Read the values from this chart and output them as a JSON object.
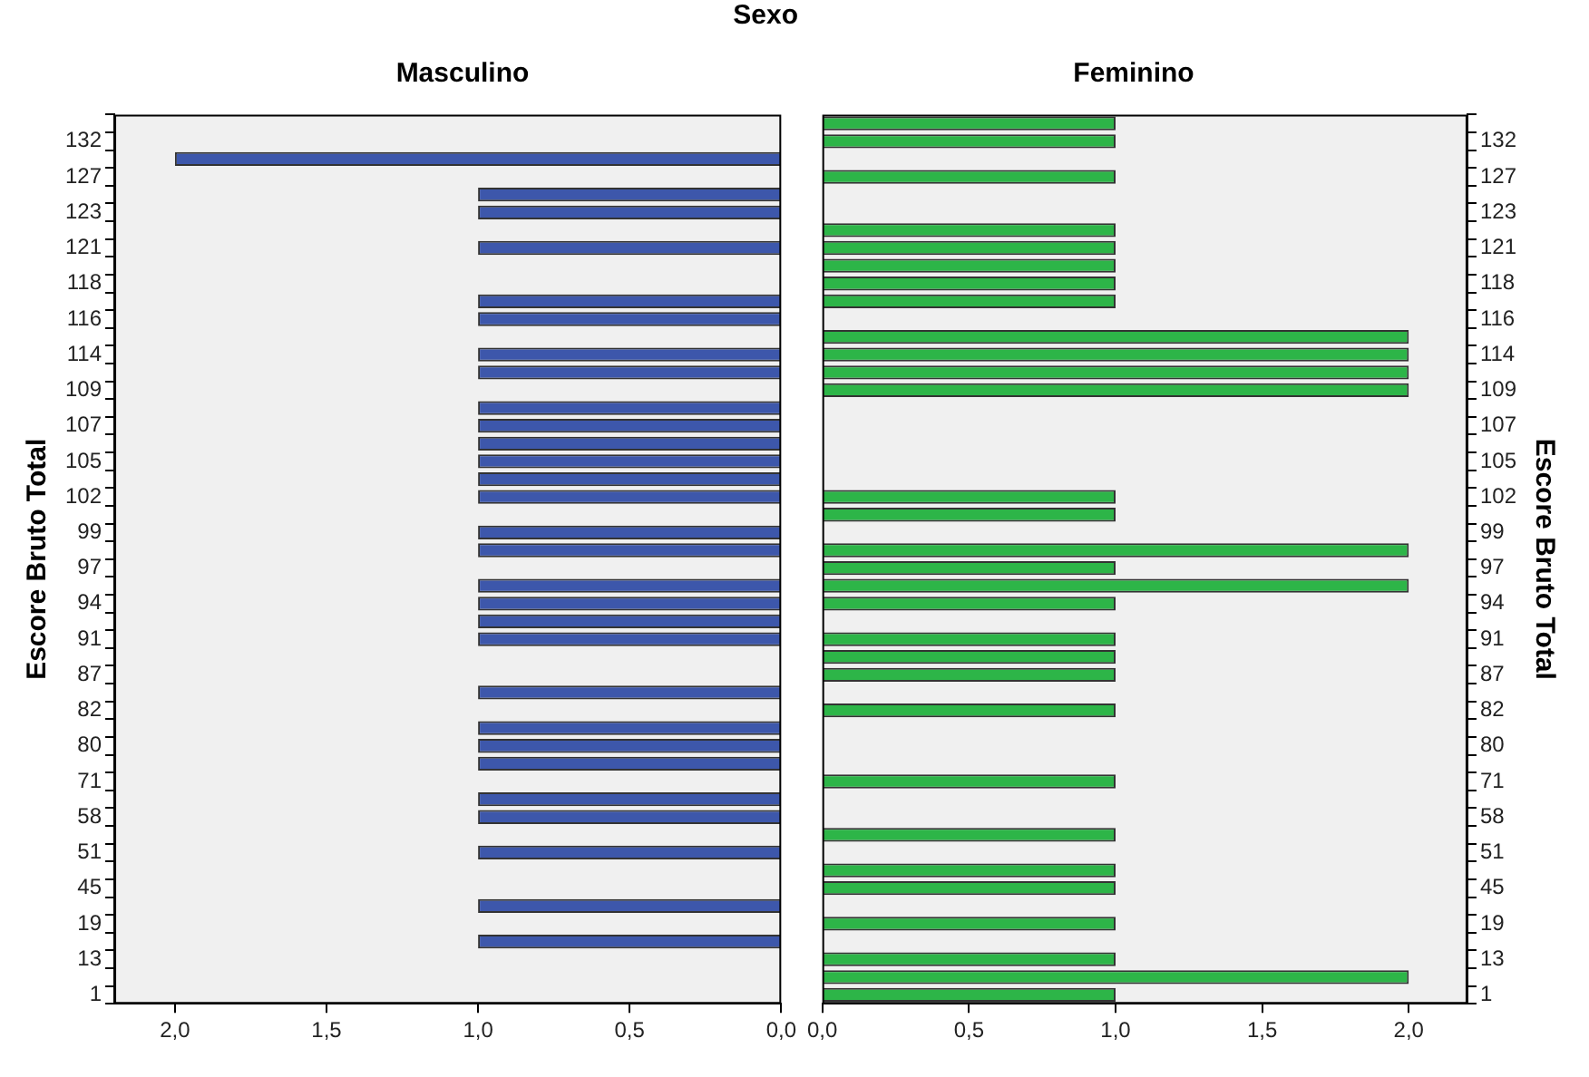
{
  "chart_data": [
    {
      "type": "bar",
      "orientation": "horizontal",
      "title": "Sexo",
      "subtitle": "Masculino",
      "ylabel": "Escore Bruto Total",
      "categories": [
        null,
        "132",
        null,
        "127",
        null,
        "123",
        null,
        "121",
        null,
        "118",
        null,
        "116",
        null,
        "114",
        null,
        "109",
        null,
        "107",
        null,
        "105",
        null,
        "102",
        null,
        "99",
        null,
        "97",
        null,
        "94",
        null,
        "91",
        null,
        "87",
        null,
        "82",
        null,
        "80",
        null,
        "71",
        null,
        "58",
        null,
        "51",
        null,
        "45",
        null,
        "19",
        null,
        "13",
        null,
        "1"
      ],
      "series": [
        {
          "color": "#3d57ab",
          "values": [
            null,
            null,
            2,
            null,
            1,
            1,
            null,
            1,
            null,
            null,
            1,
            1,
            null,
            1,
            1,
            null,
            1,
            1,
            1,
            1,
            1,
            1,
            null,
            1,
            1,
            null,
            1,
            1,
            1,
            1,
            null,
            null,
            1,
            null,
            1,
            1,
            1,
            null,
            1,
            1,
            null,
            1,
            null,
            null,
            1,
            null,
            1,
            null,
            null,
            null
          ]
        }
      ],
      "xlim": [
        2.2,
        0
      ],
      "xticks": [
        {
          "value": 2,
          "label": "2,0"
        },
        {
          "value": 1.5,
          "label": "1,5"
        },
        {
          "value": 1,
          "label": "1,0"
        },
        {
          "value": 0.5,
          "label": "0,5"
        },
        {
          "value": 0,
          "label": "0,0"
        }
      ]
    },
    {
      "type": "bar",
      "orientation": "horizontal",
      "subtitle": "Feminino",
      "ylabel": "Escore Bruto Total",
      "categories": [
        null,
        "132",
        null,
        "127",
        null,
        "123",
        null,
        "121",
        null,
        "118",
        null,
        "116",
        null,
        "114",
        null,
        "109",
        null,
        "107",
        null,
        "105",
        null,
        "102",
        null,
        "99",
        null,
        "97",
        null,
        "94",
        null,
        "91",
        null,
        "87",
        null,
        "82",
        null,
        "80",
        null,
        "71",
        null,
        "58",
        null,
        "51",
        null,
        "45",
        null,
        "19",
        null,
        "13",
        null,
        "1"
      ],
      "series": [
        {
          "color": "#2db548",
          "values": [
            1,
            1,
            null,
            1,
            null,
            null,
            1,
            1,
            1,
            1,
            1,
            null,
            2,
            2,
            2,
            2,
            null,
            null,
            null,
            null,
            null,
            1,
            1,
            null,
            2,
            1,
            2,
            1,
            null,
            1,
            1,
            1,
            null,
            1,
            null,
            null,
            null,
            1,
            null,
            null,
            1,
            null,
            1,
            1,
            null,
            1,
            null,
            1,
            2,
            1
          ]
        }
      ],
      "xlim": [
        0,
        2.2
      ],
      "xticks": [
        {
          "value": 0,
          "label": "0,0"
        },
        {
          "value": 0.5,
          "label": "0,5"
        },
        {
          "value": 1,
          "label": "1,0"
        },
        {
          "value": 1.5,
          "label": "1,5"
        },
        {
          "value": 2,
          "label": "2,0"
        }
      ]
    }
  ]
}
